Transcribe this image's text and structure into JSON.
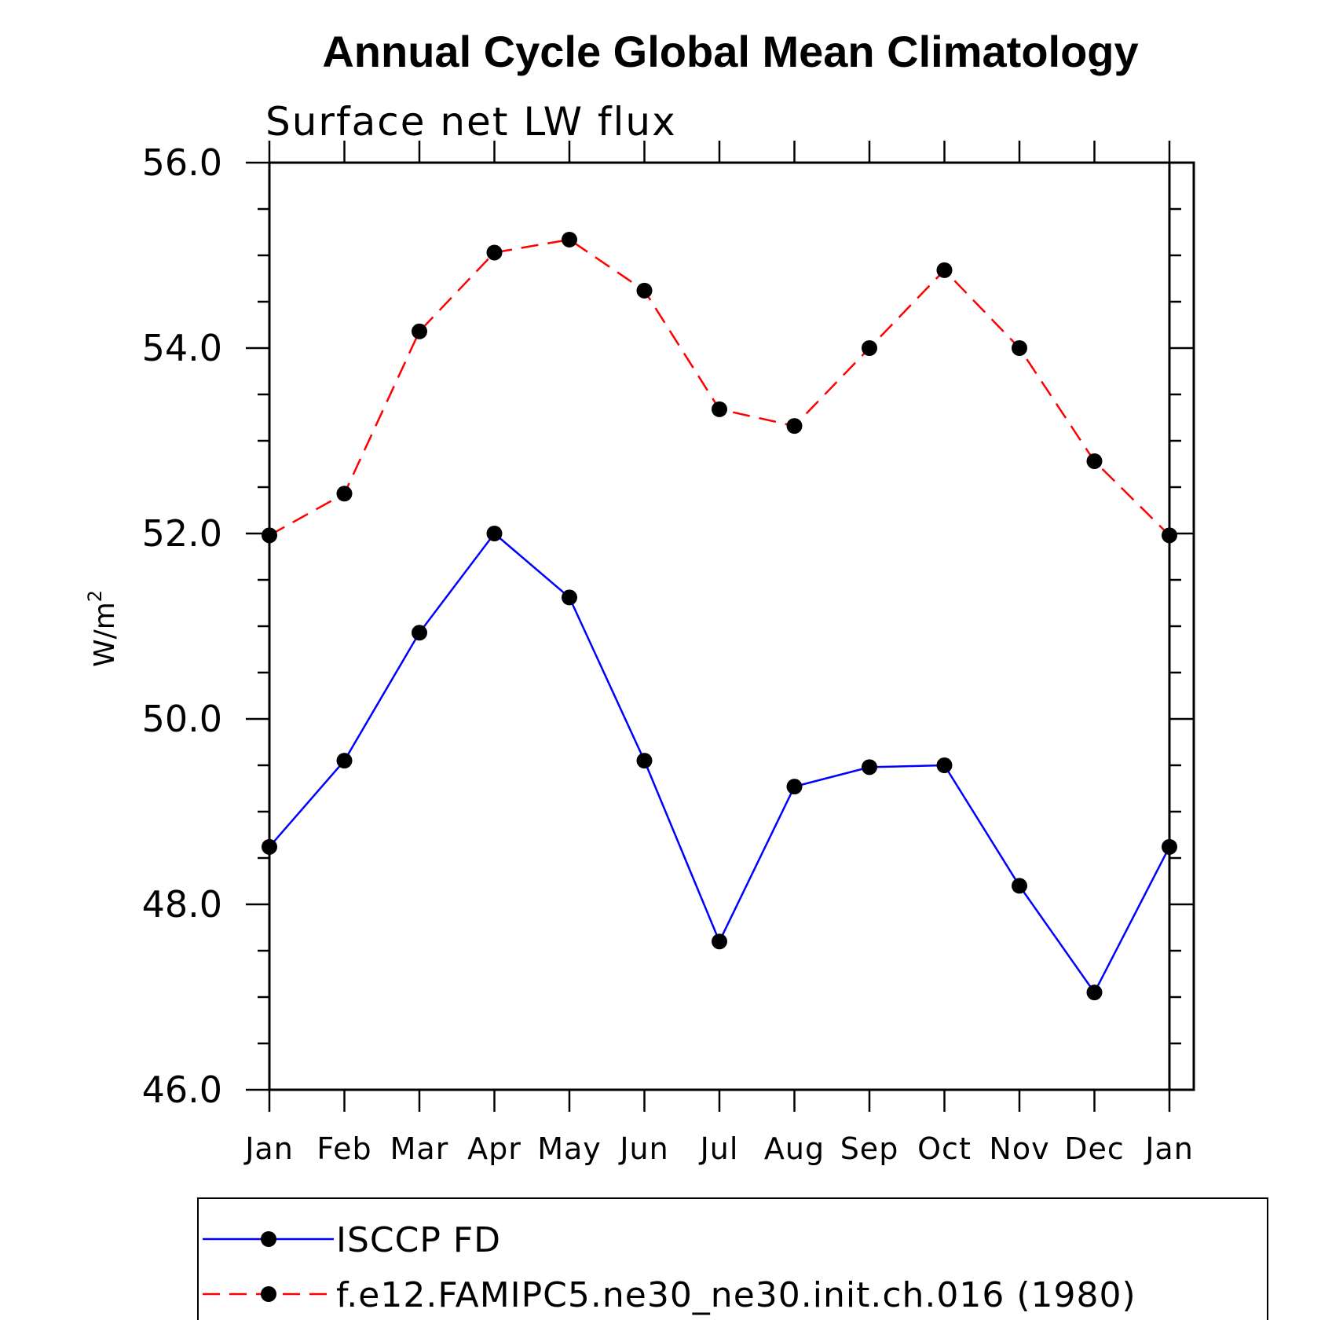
{
  "chart_data": {
    "type": "line",
    "title": "Annual Cycle Global Mean Climatology",
    "subtitle": "Surface net LW flux",
    "ylabel": "W/m",
    "ylabel_sup": "2",
    "xlabel": "",
    "ylim": [
      46.0,
      56.0
    ],
    "ytick_values": [
      46.0,
      48.0,
      50.0,
      52.0,
      54.0,
      56.0
    ],
    "ytick_labels": [
      "46.0",
      "48.0",
      "50.0",
      "52.0",
      "54.0",
      "56.0"
    ],
    "categories": [
      "Jan",
      "Feb",
      "Mar",
      "Apr",
      "May",
      "Jun",
      "Jul",
      "Aug",
      "Sep",
      "Oct",
      "Nov",
      "Dec",
      "Jan"
    ],
    "grid": false,
    "legend_position": "bottom",
    "series": [
      {
        "name": "ISCCP FD",
        "color": "#0000ff",
        "dash": "solid",
        "marker": "filled-circle",
        "values": [
          48.62,
          49.55,
          50.93,
          52.0,
          51.31,
          49.55,
          47.6,
          49.27,
          49.48,
          49.5,
          48.2,
          47.05,
          48.62
        ]
      },
      {
        "name": "f.e12.FAMIPC5.ne30_ne30.init.ch.016 (1980)",
        "color": "#ff0000",
        "dash": "dashed",
        "marker": "filled-circle",
        "values": [
          51.98,
          52.43,
          54.18,
          55.03,
          55.17,
          54.62,
          53.34,
          53.16,
          54.0,
          54.84,
          54.0,
          52.78,
          51.98
        ]
      }
    ]
  }
}
